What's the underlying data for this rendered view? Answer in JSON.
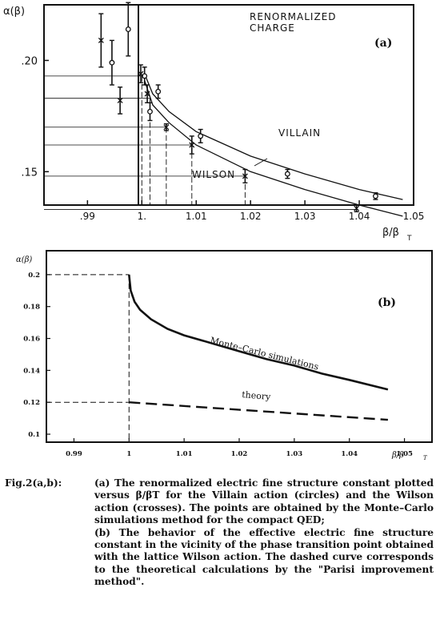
{
  "colors": {
    "ink": "#111111",
    "background": "#ffffff"
  },
  "chart_data": [
    {
      "type": "scatter",
      "panel_label": "(a)",
      "annotation": [
        "RENORMALIZED",
        "CHARGE"
      ],
      "ylabel": "α(β)",
      "xlabel": "β/β",
      "xlabel_sub": "T",
      "xlim": [
        0.982,
        1.05
      ],
      "ylim": [
        0.135,
        0.225
      ],
      "x_ticks": [
        0.99,
        1.0,
        1.01,
        1.02,
        1.03,
        1.04,
        1.05
      ],
      "x_tick_labels": [
        ".99",
        "1.",
        "1.01",
        "1.02",
        "1.03",
        "1.04",
        "1.05"
      ],
      "y_ticks": [
        0.15,
        0.2
      ],
      "y_tick_labels": [
        ".15",
        ".20"
      ],
      "grid": false,
      "series": [
        {
          "name": "VILLAIN",
          "marker": "circle",
          "points": [
            {
              "x": 0.9945,
              "y": 0.199,
              "err": 0.01
            },
            {
              "x": 0.9975,
              "y": 0.214,
              "err": 0.012
            },
            {
              "x": 1.0005,
              "y": 0.193,
              "err": 0.004
            },
            {
              "x": 1.0015,
              "y": 0.177,
              "err": 0.004
            },
            {
              "x": 1.003,
              "y": 0.186,
              "err": 0.003
            },
            {
              "x": 1.0108,
              "y": 0.166,
              "err": 0.003
            },
            {
              "x": 1.0268,
              "y": 0.149,
              "err": 0.002
            },
            {
              "x": 1.043,
              "y": 0.139,
              "err": 0.0015
            }
          ],
          "curve": [
            [
              1.0005,
              0.194
            ],
            [
              1.002,
              0.185
            ],
            [
              1.005,
              0.177
            ],
            [
              1.01,
              0.168
            ],
            [
              1.02,
              0.157
            ],
            [
              1.03,
              0.149
            ],
            [
              1.04,
              0.142
            ],
            [
              1.048,
              0.1375
            ]
          ]
        },
        {
          "name": "WILSON",
          "marker": "cross",
          "points": [
            {
              "x": 0.9925,
              "y": 0.209,
              "err": 0.012
            },
            {
              "x": 0.996,
              "y": 0.182,
              "err": 0.006
            },
            {
              "x": 0.9998,
              "y": 0.194,
              "err": 0.004
            },
            {
              "x": 1.001,
              "y": 0.185,
              "err": 0.004
            },
            {
              "x": 1.0045,
              "y": 0.17,
              "err": 0.0015
            },
            {
              "x": 1.0092,
              "y": 0.162,
              "err": 0.004
            },
            {
              "x": 1.019,
              "y": 0.148,
              "err": 0.003
            },
            {
              "x": 1.0395,
              "y": 0.1335,
              "err": 0.0015
            }
          ],
          "curve": [
            [
              1.0005,
              0.191
            ],
            [
              1.002,
              0.18
            ],
            [
              1.005,
              0.172
            ],
            [
              1.01,
              0.162
            ],
            [
              1.02,
              0.15
            ],
            [
              1.03,
              0.142
            ],
            [
              1.04,
              0.135
            ],
            [
              1.048,
              0.13
            ]
          ]
        }
      ],
      "reference_levels": [
        {
          "x_end": 1.0,
          "y": 0.193
        },
        {
          "x_end": 1.0015,
          "y": 0.183
        },
        {
          "x_end": 1.0045,
          "y": 0.17
        },
        {
          "x_end": 1.0092,
          "y": 0.162
        },
        {
          "x_end": 1.019,
          "y": 0.148
        },
        {
          "x_end": 1.0395,
          "y": 0.133
        }
      ]
    },
    {
      "type": "line",
      "panel_label": "(b)",
      "ylabel": "α(β)",
      "xlabel": "β/β",
      "xlabel_sub": "T",
      "xlim": [
        0.985,
        1.055
      ],
      "ylim": [
        0.095,
        0.215
      ],
      "x_ticks": [
        0.99,
        1.0,
        1.01,
        1.02,
        1.03,
        1.04,
        1.05
      ],
      "x_tick_labels": [
        "0.99",
        "1",
        "1.01",
        "1.02",
        "1.03",
        "1.04",
        "1.05"
      ],
      "y_ticks": [
        0.1,
        0.12,
        0.14,
        0.16,
        0.18,
        0.2
      ],
      "y_tick_labels": [
        "0.1",
        "0.12",
        "0.14",
        "0.16",
        "0.18",
        "0.2"
      ],
      "grid": false,
      "series": [
        {
          "name": "Monte–Carlo simulations",
          "style": "solid",
          "points": [
            [
              1.0,
              0.2
            ],
            [
              1.0003,
              0.19
            ],
            [
              1.001,
              0.183
            ],
            [
              1.002,
              0.178
            ],
            [
              1.004,
              0.172
            ],
            [
              1.007,
              0.166
            ],
            [
              1.01,
              0.162
            ],
            [
              1.015,
              0.157
            ],
            [
              1.02,
              0.152
            ],
            [
              1.025,
              0.147
            ],
            [
              1.03,
              0.143
            ],
            [
              1.035,
              0.138
            ],
            [
              1.04,
              0.134
            ],
            [
              1.047,
              0.128
            ]
          ]
        },
        {
          "name": "theory",
          "style": "dashed",
          "points": [
            [
              1.0,
              0.12
            ],
            [
              1.047,
              0.109
            ]
          ]
        }
      ],
      "guides": [
        {
          "from": [
            0.985,
            0.2
          ],
          "to": [
            1.0,
            0.2
          ]
        },
        {
          "from": [
            0.985,
            0.12
          ],
          "to": [
            1.0,
            0.12
          ]
        },
        {
          "from": [
            1.0,
            0.2
          ],
          "to": [
            1.0,
            0.095
          ]
        }
      ]
    }
  ],
  "caption": {
    "label": "Fig.2(a,b):",
    "part_a": "(a) The renormalized electric fine structure constant plotted versus β/βT for the Villain action (circles) and the Wilson action (crosses). The points are obtained by the Monte–Carlo simulations method for the compact QED;",
    "part_b": "(b) The behavior of the effective electric fine structure constant in the vicinity of the phase transition point obtained with the lattice Wilson action. The dashed curve corresponds to the theoretical calculations by the \"Parisi improvement method\"."
  }
}
